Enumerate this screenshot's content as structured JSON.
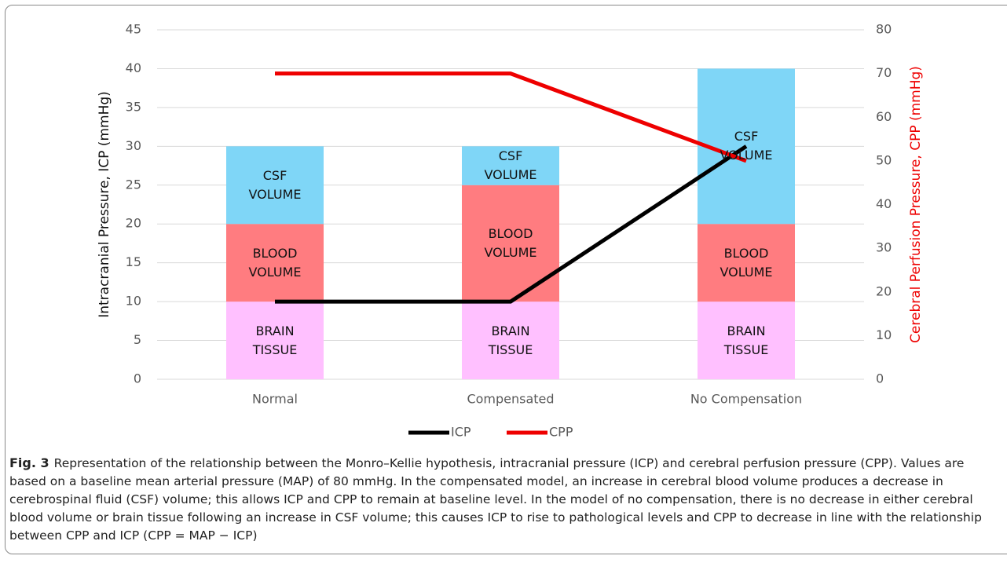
{
  "chart_data": {
    "type": "bar",
    "categories": [
      "Normal",
      "Compensated",
      "No Compensation"
    ],
    "series": [
      {
        "name": "BRAIN TISSUE",
        "color": "#ffc0ff",
        "values": [
          10,
          10,
          10
        ]
      },
      {
        "name": "BLOOD VOLUME",
        "color": "#ff7c80",
        "values": [
          10,
          15,
          10
        ]
      },
      {
        "name": "CSF VOLUME",
        "color": "#7fd6f7",
        "values": [
          10,
          5,
          20
        ]
      },
      {
        "name": "ICP",
        "type": "line",
        "color": "#000000",
        "values": [
          10,
          10,
          30
        ]
      },
      {
        "name": "CPP",
        "type": "line",
        "axis": "y2",
        "color": "#ee0000",
        "values": [
          70,
          70,
          50
        ]
      }
    ],
    "ylabel": "Intracranial Pressure, ICP (mmHg)",
    "y2label": "Cerebral Perfusion Pressure, CPP (mmHg)",
    "y2label_color": "#ee0000",
    "ylim": [
      0,
      45
    ],
    "yticks": [
      0,
      5,
      10,
      15,
      20,
      25,
      30,
      35,
      40,
      45
    ],
    "y2lim": [
      0,
      80
    ],
    "y2ticks": [
      0,
      10,
      20,
      30,
      40,
      50,
      60,
      70,
      80
    ],
    "grid": true,
    "stacked": true,
    "legend": "bottom"
  },
  "caption": {
    "label": "Fig. 3",
    "text": "Representation of the relationship between the Monro–Kellie hypothesis, intracranial pressure (ICP) and cerebral perfusion pressure (CPP). Values are based on a baseline mean arterial pressure (MAP) of 80 mmHg. In the compensated model, an increase in cerebral blood volume produces a decrease in cerebrospinal fluid (CSF) volume; this allows ICP and CPP to remain at baseline level. In the model of no compensation, there is no decrease in either cerebral blood volume or brain tissue following an increase in CSF volume; this causes ICP to rise to pathological levels and CPP to decrease in line with the relationship between CPP and ICP (CPP = MAP − ICP)"
  }
}
